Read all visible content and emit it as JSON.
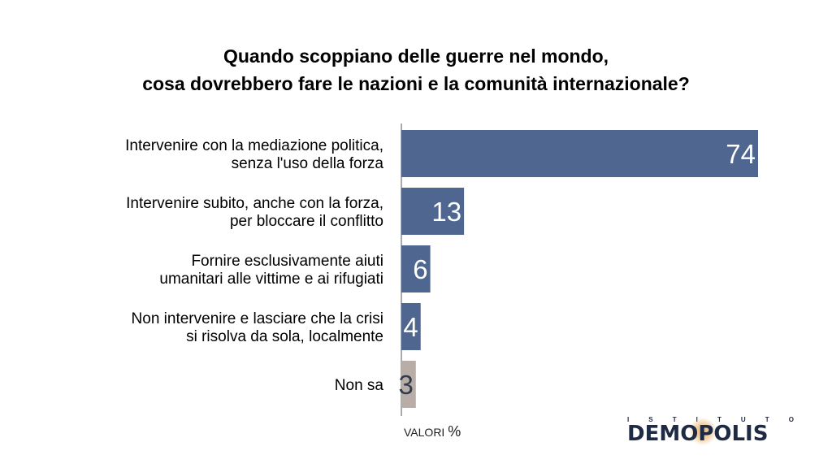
{
  "title_line1": "Quando scoppiano delle guerre nel mondo,",
  "title_line2": "cosa dovrebbero fare le nazioni e la comunità internazionale?",
  "unit_label": "VALORI",
  "unit_symbol": "%",
  "logo": {
    "top_text": [
      "I",
      "S",
      "T",
      "I",
      "T",
      "U",
      "T",
      "O"
    ],
    "word": "DEMOPOLIS"
  },
  "colors": {
    "bar": "#4e6690",
    "bar_neutral": "#b9ada8",
    "value_text": "#ffffff",
    "value_text_neutral": "#333a4a"
  },
  "chart_data": {
    "type": "bar",
    "orientation": "horizontal",
    "categories": [
      [
        "Intervenire con la mediazione politica,",
        "senza l'uso della forza"
      ],
      [
        "Intervenire subito, anche con la forza,",
        "per bloccare il conflitto"
      ],
      [
        "Fornire esclusivamente aiuti",
        "umanitari alle vittime e ai rifugiati"
      ],
      [
        "Non intervenire e lasciare che la crisi",
        "si risolva da sola, localmente"
      ],
      [
        "Non sa"
      ]
    ],
    "values": [
      74,
      13,
      6,
      4,
      3
    ],
    "highlight": [
      false,
      false,
      false,
      false,
      true
    ],
    "xlim": [
      0,
      80
    ],
    "grid": false,
    "legend": "none"
  }
}
